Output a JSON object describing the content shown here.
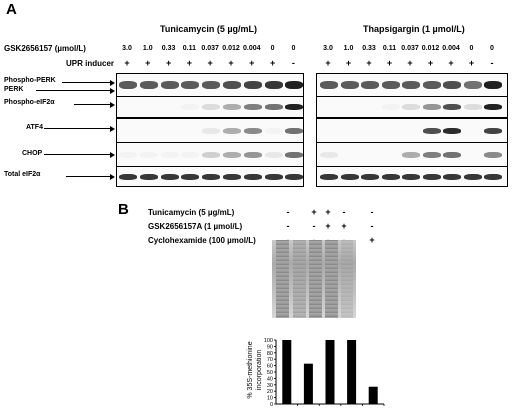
{
  "panel_a": {
    "letter": "A",
    "tunicamycin_header": "Tunicamycin (5 µg/mL)",
    "thapsigargin_header": "Thapsigargin (1 µmol/L)",
    "gsk_label": "GSK2656157 (µmol/L)",
    "upr_label": "UPR inducer",
    "concentrations": [
      "3.0",
      "1.0",
      "0.33",
      "0.11",
      "0.037",
      "0.012",
      "0.004",
      "0",
      "0"
    ],
    "upr_signs": [
      "+",
      "+",
      "+",
      "+",
      "+",
      "+",
      "+",
      "+",
      "-"
    ],
    "row_labels": [
      "Phospho-PERK",
      "PERK",
      "Phospho-eIF2α",
      "ATF4",
      "CHOP",
      "Total eIF2α"
    ]
  },
  "panel_b": {
    "letter": "B",
    "conditions": [
      {
        "label": "Tunicamycin  (5 µg/mL)",
        "signs": [
          "-",
          "+",
          "+",
          "-",
          "-"
        ]
      },
      {
        "label": "GSK2656157A (1 µmol/L)",
        "signs": [
          "-",
          "-",
          "+",
          "+",
          "-"
        ]
      },
      {
        "label": "Cyclohexamide (100 µmol/L)",
        "signs": [
          "-",
          "-",
          "-",
          "-",
          "+"
        ]
      }
    ],
    "ylabel_line1": "% 35S-methionine",
    "ylabel_line2": "incorporation",
    "yticks": [
      "0",
      "10",
      "20",
      "30",
      "40",
      "50",
      "60",
      "70",
      "80",
      "90",
      "100"
    ]
  },
  "chart_data": {
    "type": "bar",
    "categories": [
      "1",
      "2",
      "3",
      "4",
      "5"
    ],
    "values": [
      100,
      63,
      100,
      101,
      27
    ],
    "ylim": [
      0,
      100
    ],
    "ylabel": "% 35S-methionine incorporation",
    "xlabel": "",
    "title": "",
    "bar_color": "#000000"
  }
}
